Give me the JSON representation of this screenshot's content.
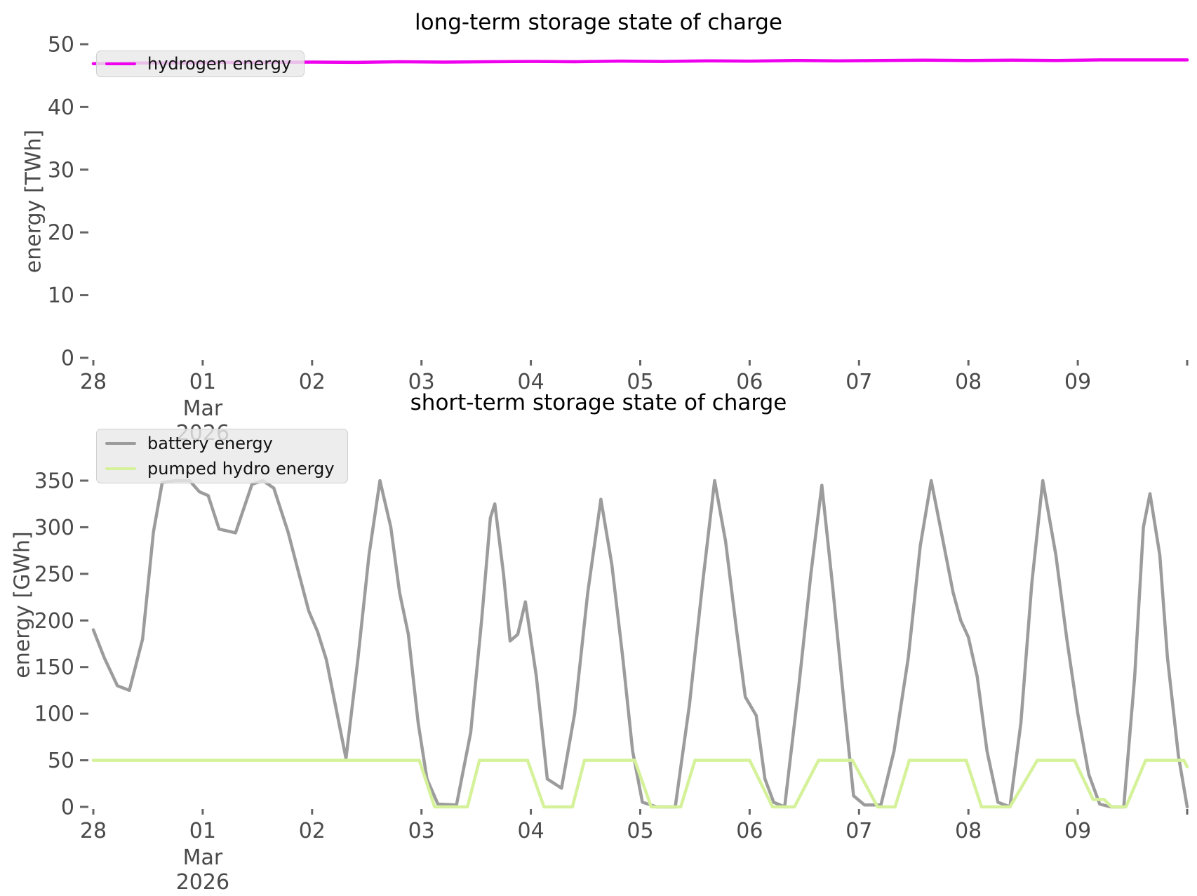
{
  "page": {
    "background": "#ffffff"
  },
  "x_axis": {
    "tick_labels": [
      "28",
      "01",
      "02",
      "03",
      "04",
      "05",
      "06",
      "07",
      "08",
      "09",
      ""
    ],
    "tick_days": [
      0,
      1,
      2,
      3,
      4,
      5,
      6,
      7,
      8,
      9,
      10
    ],
    "month_label": "Mar",
    "year_label": "2026",
    "month_under_tick_index": 1
  },
  "chart_data": [
    {
      "type": "line",
      "title": "long-term storage state of charge",
      "ylabel": "energy [TWh]",
      "ylim": [
        0,
        50
      ],
      "y_ticks": [
        0,
        10,
        20,
        30,
        40,
        50
      ],
      "x_unit": "days since 2026-02-28",
      "grid": false,
      "legend_position": "upper left",
      "series": [
        {
          "name": "hydrogen energy",
          "color": "#ee00ee",
          "points": [
            [
              0,
              46.9
            ],
            [
              0.4,
              47.0
            ],
            [
              0.8,
              47.0
            ],
            [
              1.2,
              47.1
            ],
            [
              1.6,
              47.1
            ],
            [
              2.0,
              47.15
            ],
            [
              2.4,
              47.1
            ],
            [
              2.8,
              47.2
            ],
            [
              3.2,
              47.15
            ],
            [
              3.6,
              47.2
            ],
            [
              4.0,
              47.25
            ],
            [
              4.4,
              47.2
            ],
            [
              4.8,
              47.3
            ],
            [
              5.2,
              47.25
            ],
            [
              5.6,
              47.35
            ],
            [
              6.0,
              47.3
            ],
            [
              6.4,
              47.4
            ],
            [
              6.8,
              47.35
            ],
            [
              7.2,
              47.4
            ],
            [
              7.6,
              47.45
            ],
            [
              8.0,
              47.4
            ],
            [
              8.4,
              47.45
            ],
            [
              8.8,
              47.4
            ],
            [
              9.2,
              47.5
            ],
            [
              9.6,
              47.5
            ],
            [
              10,
              47.5
            ]
          ]
        }
      ]
    },
    {
      "type": "line",
      "title": "short-term storage state of charge",
      "ylabel": "energy [GWh]",
      "ylim": [
        0,
        350
      ],
      "y_ticks": [
        0,
        50,
        100,
        150,
        200,
        250,
        300,
        350
      ],
      "x_unit": "days since 2026-02-28",
      "grid": false,
      "legend_position": "upper left",
      "series": [
        {
          "name": "battery energy",
          "color": "#9c9c9c",
          "points": [
            [
              0,
              190
            ],
            [
              0.1,
              160
            ],
            [
              0.22,
              130
            ],
            [
              0.33,
              125
            ],
            [
              0.45,
              180
            ],
            [
              0.55,
              295
            ],
            [
              0.63,
              348
            ],
            [
              0.75,
              350
            ],
            [
              0.88,
              350
            ],
            [
              0.97,
              338
            ],
            [
              1.05,
              334
            ],
            [
              1.15,
              298
            ],
            [
              1.3,
              294
            ],
            [
              1.45,
              346
            ],
            [
              1.55,
              350
            ],
            [
              1.65,
              342
            ],
            [
              1.78,
              295
            ],
            [
              1.88,
              250
            ],
            [
              1.97,
              210
            ],
            [
              2.05,
              188
            ],
            [
              2.13,
              158
            ],
            [
              2.22,
              105
            ],
            [
              2.31,
              52
            ],
            [
              2.42,
              160
            ],
            [
              2.52,
              270
            ],
            [
              2.62,
              350
            ],
            [
              2.72,
              300
            ],
            [
              2.8,
              230
            ],
            [
              2.88,
              185
            ],
            [
              2.97,
              90
            ],
            [
              3.05,
              30
            ],
            [
              3.15,
              3
            ],
            [
              3.32,
              2
            ],
            [
              3.45,
              80
            ],
            [
              3.55,
              200
            ],
            [
              3.63,
              310
            ],
            [
              3.67,
              325
            ],
            [
              3.75,
              250
            ],
            [
              3.81,
              178
            ],
            [
              3.88,
              185
            ],
            [
              3.95,
              220
            ],
            [
              4.05,
              140
            ],
            [
              4.15,
              30
            ],
            [
              4.28,
              20
            ],
            [
              4.4,
              100
            ],
            [
              4.52,
              230
            ],
            [
              4.64,
              330
            ],
            [
              4.74,
              260
            ],
            [
              4.84,
              160
            ],
            [
              4.93,
              60
            ],
            [
              5.02,
              5
            ],
            [
              5.15,
              0
            ],
            [
              5.32,
              0
            ],
            [
              5.45,
              110
            ],
            [
              5.57,
              240
            ],
            [
              5.68,
              350
            ],
            [
              5.78,
              285
            ],
            [
              5.88,
              190
            ],
            [
              5.96,
              118
            ],
            [
              6.06,
              98
            ],
            [
              6.14,
              30
            ],
            [
              6.22,
              5
            ],
            [
              6.32,
              0
            ],
            [
              6.45,
              130
            ],
            [
              6.56,
              250
            ],
            [
              6.66,
              345
            ],
            [
              6.76,
              235
            ],
            [
              6.86,
              115
            ],
            [
              6.95,
              12
            ],
            [
              7.05,
              2
            ],
            [
              7.2,
              2
            ],
            [
              7.32,
              60
            ],
            [
              7.45,
              160
            ],
            [
              7.56,
              280
            ],
            [
              7.66,
              350
            ],
            [
              7.76,
              290
            ],
            [
              7.86,
              230
            ],
            [
              7.93,
              200
            ],
            [
              8.0,
              182
            ],
            [
              8.08,
              140
            ],
            [
              8.17,
              60
            ],
            [
              8.27,
              5
            ],
            [
              8.38,
              0
            ],
            [
              8.48,
              90
            ],
            [
              8.58,
              240
            ],
            [
              8.68,
              350
            ],
            [
              8.8,
              270
            ],
            [
              8.9,
              180
            ],
            [
              9.0,
              100
            ],
            [
              9.1,
              35
            ],
            [
              9.2,
              3
            ],
            [
              9.3,
              0
            ],
            [
              9.42,
              0
            ],
            [
              9.52,
              140
            ],
            [
              9.6,
              300
            ],
            [
              9.66,
              336
            ],
            [
              9.75,
              270
            ],
            [
              9.82,
              160
            ],
            [
              9.92,
              55
            ],
            [
              10,
              0
            ]
          ]
        },
        {
          "name": "pumped hydro energy",
          "color": "#d5f29b",
          "points": [
            [
              0,
              50
            ],
            [
              2.98,
              50
            ],
            [
              3.12,
              0
            ],
            [
              3.42,
              0
            ],
            [
              3.53,
              50
            ],
            [
              3.97,
              50
            ],
            [
              4.12,
              0
            ],
            [
              4.38,
              0
            ],
            [
              4.49,
              50
            ],
            [
              4.95,
              50
            ],
            [
              5.1,
              0
            ],
            [
              5.37,
              0
            ],
            [
              5.5,
              50
            ],
            [
              6.0,
              50
            ],
            [
              6.21,
              0
            ],
            [
              6.41,
              0
            ],
            [
              6.63,
              50
            ],
            [
              6.94,
              50
            ],
            [
              7.17,
              0
            ],
            [
              7.33,
              0
            ],
            [
              7.46,
              50
            ],
            [
              7.98,
              50
            ],
            [
              8.12,
              0
            ],
            [
              8.38,
              0
            ],
            [
              8.63,
              50
            ],
            [
              8.97,
              50
            ],
            [
              9.14,
              8
            ],
            [
              9.24,
              8
            ],
            [
              9.31,
              0
            ],
            [
              9.44,
              0
            ],
            [
              9.62,
              50
            ],
            [
              9.97,
              50
            ],
            [
              10,
              43
            ]
          ]
        }
      ]
    }
  ]
}
